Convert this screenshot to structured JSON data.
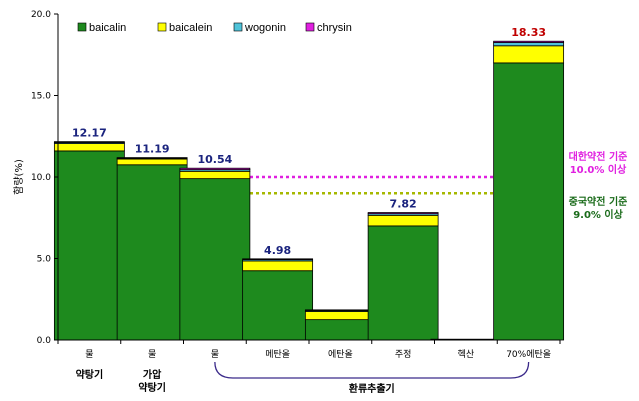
{
  "chart_data": {
    "type": "bar",
    "stacked": true,
    "ylabel": "함량(%)",
    "ylim": [
      0,
      20
    ],
    "yticks": [
      "0.0",
      "5.0",
      "10.0",
      "15.0",
      "20.0"
    ],
    "categories": [
      "물",
      "물",
      "물",
      "메탄올",
      "에탄올",
      "주정",
      "헥산",
      "70%에탄올"
    ],
    "series": [
      {
        "name": "baicalin",
        "color": "#1e8a1e",
        "values": [
          11.6,
          10.75,
          9.9,
          4.25,
          1.25,
          7.0,
          0.05,
          17.0
        ]
      },
      {
        "name": "baicalein",
        "color": "#ffff00",
        "values": [
          0.45,
          0.35,
          0.45,
          0.6,
          0.5,
          0.65,
          0.0,
          1.05
        ]
      },
      {
        "name": "wogonin",
        "color": "#4fc3d9",
        "values": [
          0.07,
          0.05,
          0.1,
          0.08,
          0.06,
          0.1,
          0.0,
          0.2
        ]
      },
      {
        "name": "chrysin",
        "color": "#e020e0",
        "values": [
          0.05,
          0.04,
          0.09,
          0.05,
          0.04,
          0.07,
          0.0,
          0.08
        ]
      }
    ],
    "totals": [
      "12.17",
      "11.19",
      "10.54",
      "4.98",
      "",
      "7.82",
      "",
      "18.33"
    ],
    "total_colors": [
      "#1a237e",
      "#1a237e",
      "#1a237e",
      "#1a237e",
      "#1a237e",
      "#1a237e",
      "#1a237e",
      "#c00000"
    ],
    "sublabels": [
      "약탕기",
      "가압\n약탕기"
    ],
    "group_label": "환류추출기",
    "reference_lines": [
      {
        "value": 10.0,
        "color": "#e020e0",
        "text": [
          "대한약전 기준",
          "10.0% 이상"
        ]
      },
      {
        "value": 9.0,
        "color": "#a6b800",
        "text": [
          "중국약전 기준",
          "9.0% 이상"
        ],
        "text_color": "#1a6b1a"
      }
    ],
    "legend_position": "top-left",
    "grid": false
  }
}
